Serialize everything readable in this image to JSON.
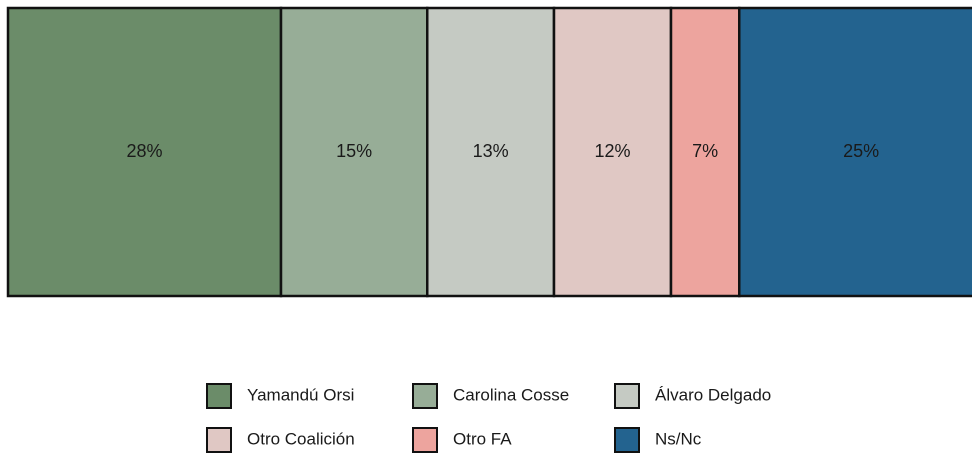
{
  "chart_data": {
    "type": "bar",
    "orientation": "horizontal",
    "stacked": true,
    "legend": "bottom",
    "categories": [
      null
    ],
    "series": [
      {
        "name": "Yamandú Orsi",
        "color": "#6b8c69",
        "values": [
          28
        ],
        "value_labels": [
          "28%"
        ]
      },
      {
        "name": "Carolina Cosse",
        "color": "#97ad97",
        "values": [
          15
        ],
        "value_labels": [
          "15%"
        ]
      },
      {
        "name": "Álvaro Delgado",
        "color": "#c5cac3",
        "values": [
          13
        ],
        "value_labels": [
          "13%"
        ]
      },
      {
        "name": "Otro Coalición",
        "color": "#e0c8c4",
        "values": [
          12
        ],
        "value_labels": [
          "12%"
        ]
      },
      {
        "name": "Otro FA",
        "color": "#eda49e",
        "values": [
          7
        ],
        "value_labels": [
          "7%"
        ]
      },
      {
        "name": "Ns/Nc",
        "color": "#23638f",
        "values": [
          25
        ],
        "value_labels": [
          "25%"
        ]
      }
    ]
  }
}
